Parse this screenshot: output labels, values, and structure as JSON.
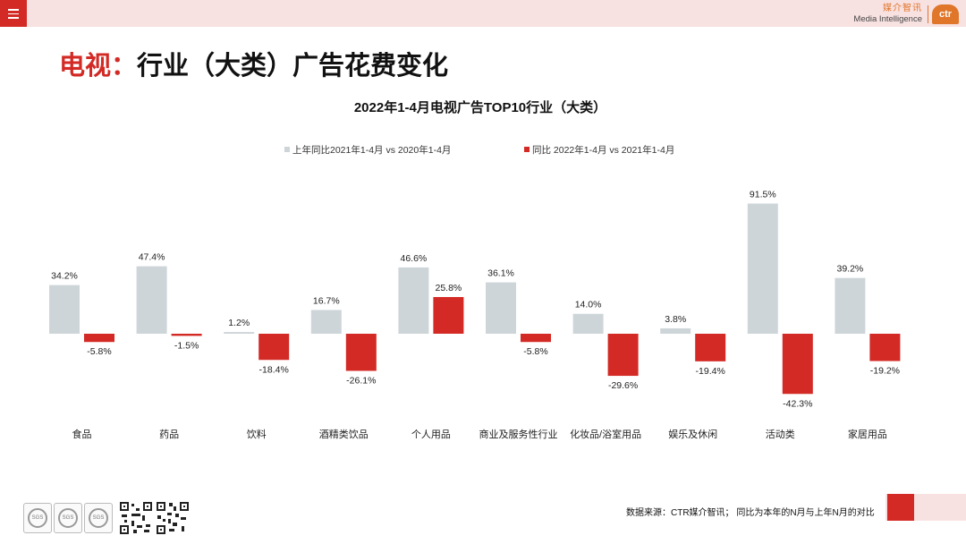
{
  "header": {
    "menu_icon": "hamburger-menu-icon",
    "logo_cn": "媒介智讯",
    "logo_en": "Media Intelligence",
    "logo_mark": "ctr",
    "colors": {
      "band": "#f8e1e1",
      "accent": "#d32a25",
      "logo": "#e0762a"
    }
  },
  "title": {
    "prefix": "电视：",
    "main": "行业（大类）广告花费变化"
  },
  "chart_data": {
    "type": "bar",
    "title": "2022年1-4月电视广告TOP10行业（大类）",
    "categories": [
      "食品",
      "药品",
      "饮料",
      "酒精类饮品",
      "个人用品",
      "商业及服务性行业",
      "化妆品/浴室用品",
      "娱乐及休闲",
      "活动类",
      "家居用品"
    ],
    "series": [
      {
        "name": "上年同比2021年1-4月  vs  2020年1-4月",
        "color": "#ced5d9",
        "values": [
          34.2,
          47.4,
          1.2,
          16.7,
          46.6,
          36.1,
          14.0,
          3.8,
          91.5,
          39.2
        ],
        "labels": [
          "34.2%",
          "47.4%",
          "1.2%",
          "16.7%",
          "46.6%",
          "36.1%",
          "14.0%",
          "3.8%",
          "91.5%",
          "39.2%"
        ]
      },
      {
        "name": "同比 2022年1-4月  vs  2021年1-4月",
        "color": "#d32a25",
        "values": [
          -5.8,
          -1.5,
          -18.4,
          -26.1,
          25.8,
          -5.8,
          -29.6,
          -19.4,
          -42.3,
          -19.2
        ],
        "labels": [
          "-5.8%",
          "-1.5%",
          "-18.4%",
          "-26.1%",
          "25.8%",
          "-5.8%",
          "-29.6%",
          "-19.4%",
          "-42.3%",
          "-19.2%"
        ]
      }
    ],
    "ylim": [
      -50,
      100
    ],
    "grid": false,
    "legend_position": "top-center"
  },
  "footer": {
    "badges": [
      "SGS",
      "SGS",
      "SGS"
    ],
    "source": "数据来源：CTR媒介智讯；  同比为本年的N月与上年N月的对比"
  }
}
